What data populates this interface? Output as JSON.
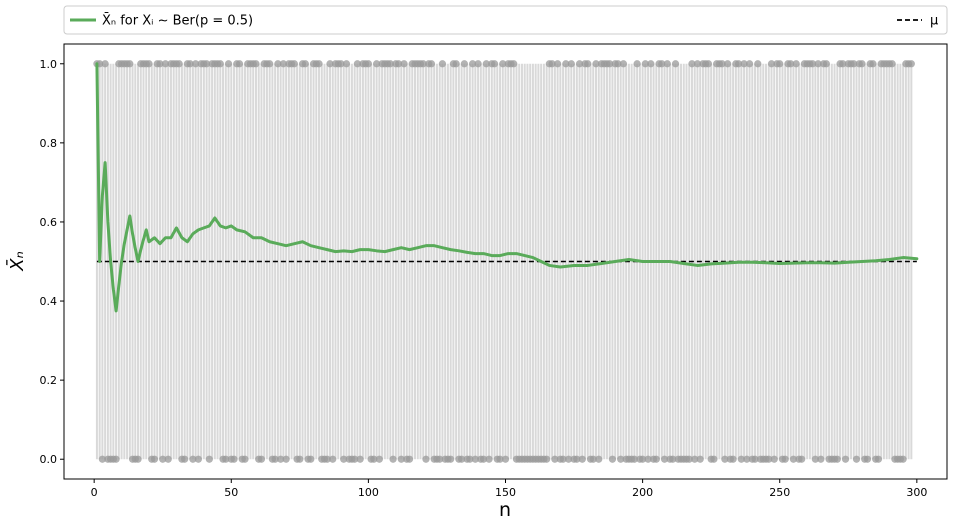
{
  "chart_data": {
    "type": "line",
    "title": "",
    "xlabel": "n",
    "ylabel": "X̄ₙ",
    "xlim": [
      -11,
      311
    ],
    "ylim": [
      -0.05,
      1.05
    ],
    "xticks": [
      0,
      50,
      100,
      150,
      200,
      250,
      300
    ],
    "yticks": [
      0.0,
      0.2,
      0.4,
      0.6,
      0.8,
      1.0
    ],
    "ytick_labels": [
      "0.0",
      "0.2",
      "0.4",
      "0.6",
      "0.8",
      "1.0"
    ],
    "grid": false,
    "legend": {
      "placement": "top, spanning full width",
      "entries": [
        {
          "label": "X̄ₙ for Xᵢ ∼ Ber(p = 0.5)",
          "color": "#5aab5a",
          "style": "solid"
        },
        {
          "label": "μ",
          "color": "#000000",
          "style": "dashed"
        }
      ]
    },
    "mean_line": {
      "name": "μ",
      "value": 0.5,
      "x_range": [
        1,
        300
      ],
      "color": "#000000"
    },
    "series": [
      {
        "name": "X̄ₙ for Xᵢ ∼ Ber(p = 0.5)",
        "color": "#5aab5a",
        "x": [
          1,
          2,
          3,
          4,
          5,
          6,
          7,
          8,
          9,
          10,
          11,
          12,
          13,
          14,
          15,
          16,
          17,
          18,
          19,
          20,
          22,
          24,
          26,
          28,
          30,
          32,
          34,
          36,
          38,
          40,
          42,
          44,
          46,
          48,
          50,
          52,
          55,
          58,
          61,
          64,
          67,
          70,
          73,
          76,
          79,
          82,
          85,
          88,
          91,
          94,
          97,
          100,
          103,
          106,
          109,
          112,
          115,
          118,
          121,
          124,
          127,
          130,
          133,
          136,
          139,
          142,
          145,
          148,
          151,
          154,
          157,
          160,
          163,
          166,
          170,
          175,
          180,
          185,
          190,
          195,
          200,
          205,
          210,
          215,
          220,
          225,
          230,
          235,
          240,
          245,
          250,
          255,
          260,
          265,
          270,
          275,
          280,
          285,
          290,
          295,
          300
        ],
        "values": [
          1.0,
          0.5,
          0.667,
          0.75,
          0.6,
          0.5,
          0.43,
          0.375,
          0.44,
          0.5,
          0.545,
          0.58,
          0.615,
          0.57,
          0.533,
          0.5,
          0.53,
          0.556,
          0.58,
          0.55,
          0.56,
          0.545,
          0.56,
          0.56,
          0.585,
          0.56,
          0.55,
          0.57,
          0.58,
          0.585,
          0.59,
          0.61,
          0.59,
          0.585,
          0.59,
          0.58,
          0.575,
          0.56,
          0.56,
          0.55,
          0.545,
          0.54,
          0.545,
          0.55,
          0.54,
          0.535,
          0.53,
          0.525,
          0.527,
          0.525,
          0.53,
          0.53,
          0.527,
          0.525,
          0.53,
          0.535,
          0.53,
          0.535,
          0.54,
          0.54,
          0.535,
          0.53,
          0.527,
          0.523,
          0.52,
          0.52,
          0.515,
          0.515,
          0.52,
          0.52,
          0.515,
          0.51,
          0.5,
          0.49,
          0.486,
          0.49,
          0.49,
          0.495,
          0.5,
          0.505,
          0.5,
          0.5,
          0.5,
          0.495,
          0.49,
          0.494,
          0.496,
          0.498,
          0.498,
          0.497,
          0.495,
          0.496,
          0.497,
          0.497,
          0.496,
          0.498,
          0.5,
          0.502,
          0.505,
          0.51,
          0.507
        ]
      }
    ],
    "samples": {
      "name": "Xᵢ",
      "color": "#999999",
      "values": [
        1,
        1,
        0,
        1,
        0,
        0,
        0,
        0,
        1,
        1,
        1,
        1,
        1,
        0,
        0,
        0,
        1,
        1,
        1,
        1,
        0,
        0,
        1,
        1,
        0,
        1,
        0,
        1,
        1,
        1,
        1,
        0,
        0,
        1,
        1,
        0,
        1,
        0,
        1,
        1,
        1,
        0,
        1,
        1,
        1,
        1,
        0,
        0,
        1,
        0,
        0,
        1,
        1,
        0,
        0,
        1,
        1,
        1,
        1,
        0,
        0,
        1,
        1,
        1,
        0,
        0,
        1,
        0,
        1,
        0,
        1,
        1,
        1,
        0,
        0,
        1,
        1,
        0,
        0,
        1,
        1,
        1,
        0,
        0,
        0,
        1,
        0,
        1,
        1,
        1,
        0,
        1,
        0,
        0,
        0,
        1,
        0,
        1,
        1,
        1,
        0,
        0,
        1,
        0,
        1,
        1,
        1,
        1,
        0,
        1,
        1,
        0,
        1,
        0,
        0,
        1,
        1,
        1,
        1,
        1,
        0,
        1,
        1,
        0,
        0,
        0,
        1,
        0,
        0,
        0,
        1,
        1,
        0,
        0,
        1,
        0,
        0,
        1,
        0,
        1,
        0,
        0,
        1,
        0,
        1,
        1,
        0,
        0,
        1,
        0,
        1,
        1,
        1,
        0,
        0,
        0,
        0,
        0,
        0,
        0,
        0,
        0,
        0,
        0,
        0,
        1,
        1,
        0,
        1,
        0,
        0,
        1,
        0,
        1,
        0,
        0,
        1,
        0,
        1,
        1,
        0,
        0,
        1,
        0,
        1,
        1,
        1,
        1,
        0,
        1,
        1,
        0,
        1,
        0,
        0,
        0,
        0,
        1,
        0,
        0,
        1,
        0,
        1,
        0,
        0,
        1,
        1,
        0,
        1,
        0,
        0,
        1,
        0,
        0,
        0,
        0,
        0,
        1,
        0,
        1,
        0,
        1,
        1,
        1,
        0,
        0,
        1,
        1,
        1,
        0,
        1,
        0,
        0,
        1,
        1,
        0,
        1,
        0,
        1,
        0,
        0,
        1,
        0,
        0,
        0,
        0,
        1,
        0,
        1,
        1,
        0,
        0,
        1,
        1,
        0,
        1,
        0,
        0,
        1,
        1,
        1,
        1,
        0,
        1,
        0,
        1,
        1,
        0,
        0,
        0,
        0,
        1,
        1,
        0,
        1,
        1,
        1,
        0,
        1,
        1,
        0,
        0,
        1,
        1,
        0,
        0,
        1,
        1,
        1,
        1,
        1,
        0,
        0,
        0,
        0,
        1,
        1,
        1
      ]
    }
  }
}
